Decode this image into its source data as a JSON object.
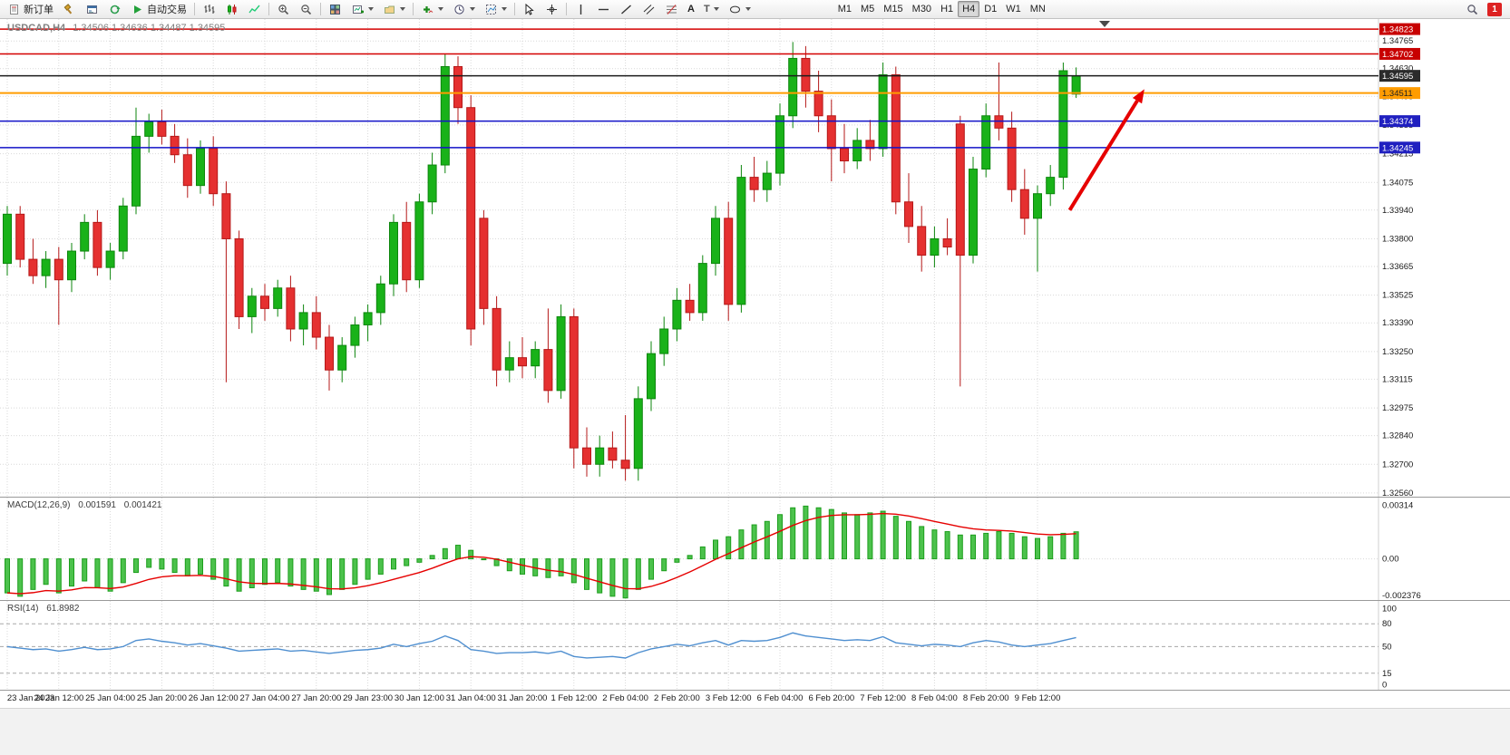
{
  "toolbar": {
    "new_order_label": "新订单",
    "auto_trading_label": "自动交易",
    "text_tool_label": "A",
    "label_tool_label": "T",
    "timeframes": [
      "M1",
      "M5",
      "M15",
      "M30",
      "H1",
      "H4",
      "D1",
      "W1",
      "MN"
    ],
    "active_timeframe": "H4",
    "notification_badge": "1"
  },
  "chart": {
    "title_symbol": "USDCAD,H4",
    "title_ohlc": "1.34506 1.34636 1.34487 1.34595"
  },
  "panels": {
    "macd_label": "MACD(12,26,9)",
    "macd_value": "0.001591",
    "macd_signal_value": "0.001421",
    "rsi_label": "RSI(14)",
    "rsi_value": "61.8982"
  },
  "chart_data": {
    "type": "candlestick",
    "symbol": "USDCAD",
    "timeframe": "H4",
    "price_view": {
      "max": 1.34872,
      "min": 1.32542
    },
    "price_ticks": [
      1.34765,
      1.3463,
      1.34495,
      1.34355,
      1.34215,
      1.34075,
      1.3394,
      1.338,
      1.33665,
      1.33525,
      1.3339,
      1.3325,
      1.33115,
      1.32975,
      1.3284,
      1.327,
      1.3256
    ],
    "style": {
      "up": "#0d860d",
      "up_fill": "#19b219",
      "down": "#b51818",
      "down_fill": "#e53030",
      "macd_bar_fill": "#4cc24c",
      "macd_bar_stroke": "#1d9e1d",
      "macd_signal": "#e60000",
      "rsi_line": "#4f8fd0"
    },
    "hlines": [
      {
        "price": 1.34823,
        "color": "#d40000",
        "width": 1.5,
        "tag_bg": "#c80000",
        "tag_fg": "#ffffff"
      },
      {
        "price": 1.34702,
        "color": "#d40000",
        "width": 1.5,
        "tag_bg": "#c80000",
        "tag_fg": "#ffffff"
      },
      {
        "price": 1.34595,
        "color": "#1c1c1c",
        "width": 1.5,
        "tag_bg": "#2b2b2b",
        "tag_fg": "#ffffff",
        "current": true
      },
      {
        "price": 1.34511,
        "color": "#ff9c00",
        "width": 2,
        "tag_bg": "#ff9c00",
        "tag_fg": "#222222"
      },
      {
        "price": 1.34374,
        "color": "#1212c8",
        "width": 1.5,
        "tag_bg": "#2020c0",
        "tag_fg": "#ffffff"
      },
      {
        "price": 1.34245,
        "color": "#1212c8",
        "width": 1.5,
        "tag_bg": "#2020c0",
        "tag_fg": "#ffffff"
      }
    ],
    "arrow": {
      "from_index": 82.5,
      "from_price": 1.3394,
      "to_index": 88.3,
      "to_price": 1.3453,
      "color": "#e60000"
    },
    "time_label_step": 4,
    "time_labels": [
      "23 Jan 2023",
      "24 Jan 12:00",
      "25 Jan 04:00",
      "25 Jan 20:00",
      "26 Jan 12:00",
      "27 Jan 04:00",
      "27 Jan 20:00",
      "29 Jan 23:00",
      "30 Jan 12:00",
      "31 Jan 04:00",
      "31 Jan 20:00",
      "1 Feb 12:00",
      "2 Feb 04:00",
      "2 Feb 20:00",
      "3 Feb 12:00",
      "6 Feb 04:00",
      "6 Feb 20:00",
      "7 Feb 12:00",
      "8 Feb 04:00",
      "8 Feb 20:00",
      "9 Feb 12:00"
    ],
    "candles": [
      [
        1.3368,
        1.3396,
        1.3362,
        1.3392
      ],
      [
        1.3392,
        1.3396,
        1.3366,
        1.337
      ],
      [
        1.337,
        1.338,
        1.3358,
        1.3362
      ],
      [
        1.3362,
        1.3374,
        1.3356,
        1.337
      ],
      [
        1.337,
        1.3376,
        1.3338,
        1.336
      ],
      [
        1.336,
        1.3378,
        1.3354,
        1.3374
      ],
      [
        1.3374,
        1.3392,
        1.337,
        1.3388
      ],
      [
        1.3388,
        1.3394,
        1.3362,
        1.3366
      ],
      [
        1.3366,
        1.3378,
        1.336,
        1.3374
      ],
      [
        1.3374,
        1.34,
        1.337,
        1.3396
      ],
      [
        1.3396,
        1.3444,
        1.3392,
        1.343
      ],
      [
        1.343,
        1.3441,
        1.3422,
        1.3437
      ],
      [
        1.3437,
        1.3443,
        1.3426,
        1.343
      ],
      [
        1.343,
        1.3436,
        1.3417,
        1.3421
      ],
      [
        1.3421,
        1.3429,
        1.34,
        1.3406
      ],
      [
        1.3406,
        1.3428,
        1.3402,
        1.3424
      ],
      [
        1.3424,
        1.343,
        1.3396,
        1.3402
      ],
      [
        1.3402,
        1.3408,
        1.331,
        1.338
      ],
      [
        1.338,
        1.3384,
        1.3336,
        1.3342
      ],
      [
        1.3342,
        1.3356,
        1.3334,
        1.3352
      ],
      [
        1.3352,
        1.3358,
        1.334,
        1.3346
      ],
      [
        1.3346,
        1.336,
        1.3342,
        1.3356
      ],
      [
        1.3356,
        1.3362,
        1.333,
        1.3336
      ],
      [
        1.3336,
        1.3348,
        1.3328,
        1.3344
      ],
      [
        1.3344,
        1.3352,
        1.3326,
        1.3332
      ],
      [
        1.3332,
        1.3338,
        1.3306,
        1.3316
      ],
      [
        1.3316,
        1.3332,
        1.331,
        1.3328
      ],
      [
        1.3328,
        1.3342,
        1.3322,
        1.3338
      ],
      [
        1.3338,
        1.3348,
        1.333,
        1.3344
      ],
      [
        1.3344,
        1.3362,
        1.3338,
        1.3358
      ],
      [
        1.3358,
        1.3392,
        1.3352,
        1.3388
      ],
      [
        1.3388,
        1.3398,
        1.3354,
        1.336
      ],
      [
        1.336,
        1.3402,
        1.3356,
        1.3398
      ],
      [
        1.3398,
        1.3422,
        1.3392,
        1.3416
      ],
      [
        1.3416,
        1.347,
        1.3412,
        1.3464
      ],
      [
        1.3464,
        1.3469,
        1.3436,
        1.3444
      ],
      [
        1.3444,
        1.345,
        1.3328,
        1.3336
      ],
      [
        1.339,
        1.3394,
        1.3338,
        1.3346
      ],
      [
        1.3346,
        1.3352,
        1.3308,
        1.3316
      ],
      [
        1.3316,
        1.333,
        1.331,
        1.3322
      ],
      [
        1.3322,
        1.3332,
        1.3312,
        1.3318
      ],
      [
        1.3318,
        1.333,
        1.3312,
        1.3326
      ],
      [
        1.3326,
        1.3346,
        1.33,
        1.3306
      ],
      [
        1.3306,
        1.3348,
        1.3302,
        1.3342
      ],
      [
        1.3342,
        1.3346,
        1.3268,
        1.3278
      ],
      [
        1.3278,
        1.3288,
        1.3264,
        1.327
      ],
      [
        1.327,
        1.3284,
        1.3264,
        1.3278
      ],
      [
        1.3278,
        1.3286,
        1.3268,
        1.3272
      ],
      [
        1.3272,
        1.3294,
        1.3262,
        1.3268
      ],
      [
        1.3268,
        1.3308,
        1.3262,
        1.3302
      ],
      [
        1.3302,
        1.333,
        1.3296,
        1.3324
      ],
      [
        1.3324,
        1.3342,
        1.3318,
        1.3336
      ],
      [
        1.3336,
        1.3356,
        1.333,
        1.335
      ],
      [
        1.335,
        1.3358,
        1.334,
        1.3344
      ],
      [
        1.3344,
        1.3372,
        1.334,
        1.3368
      ],
      [
        1.3368,
        1.3396,
        1.3362,
        1.339
      ],
      [
        1.339,
        1.3398,
        1.334,
        1.3348
      ],
      [
        1.3348,
        1.3416,
        1.3344,
        1.341
      ],
      [
        1.341,
        1.342,
        1.3398,
        1.3404
      ],
      [
        1.3404,
        1.3418,
        1.3398,
        1.3412
      ],
      [
        1.3412,
        1.3446,
        1.3406,
        1.344
      ],
      [
        1.344,
        1.3476,
        1.3434,
        1.3468
      ],
      [
        1.3468,
        1.3474,
        1.3444,
        1.3452
      ],
      [
        1.3452,
        1.3462,
        1.3432,
        1.344
      ],
      [
        1.344,
        1.3448,
        1.3408,
        1.3424
      ],
      [
        1.3424,
        1.3436,
        1.3412,
        1.3418
      ],
      [
        1.3418,
        1.3434,
        1.3414,
        1.3428
      ],
      [
        1.3428,
        1.3438,
        1.3418,
        1.3424
      ],
      [
        1.3424,
        1.3466,
        1.342,
        1.346
      ],
      [
        1.346,
        1.3464,
        1.3392,
        1.3398
      ],
      [
        1.3398,
        1.3412,
        1.3378,
        1.3386
      ],
      [
        1.3386,
        1.3396,
        1.3364,
        1.3372
      ],
      [
        1.3372,
        1.3386,
        1.3366,
        1.338
      ],
      [
        1.338,
        1.339,
        1.3372,
        1.3376
      ],
      [
        1.3436,
        1.344,
        1.3308,
        1.3372
      ],
      [
        1.3372,
        1.342,
        1.3368,
        1.3414
      ],
      [
        1.3414,
        1.3446,
        1.341,
        1.344
      ],
      [
        1.344,
        1.3466,
        1.3428,
        1.3434
      ],
      [
        1.3434,
        1.3442,
        1.3398,
        1.3404
      ],
      [
        1.3404,
        1.3414,
        1.3382,
        1.339
      ],
      [
        1.339,
        1.3406,
        1.3364,
        1.3402
      ],
      [
        1.3402,
        1.3416,
        1.3396,
        1.341
      ],
      [
        1.341,
        1.3466,
        1.3404,
        1.3462
      ],
      [
        1.34506,
        1.34636,
        1.34487,
        1.34595
      ]
    ],
    "macd": {
      "label": "MACD(12,26,9)",
      "current_macd": 0.001591,
      "current_signal": 0.001421,
      "view_max": 0.0036,
      "view_min": -0.00242,
      "axis_ticks": [
        "0.00314",
        "0.00",
        "-0.002376"
      ],
      "axis_tick_values": [
        0.00314,
        0,
        -0.002376
      ],
      "signal_smoothing": 0.25,
      "values": [
        -0.002,
        -0.0022,
        -0.0018,
        -0.0015,
        -0.002,
        -0.0016,
        -0.0013,
        -0.0017,
        -0.0019,
        -0.0014,
        -0.0008,
        -0.0005,
        -0.0006,
        -0.0008,
        -0.001,
        -0.0009,
        -0.0012,
        -0.0016,
        -0.0019,
        -0.0017,
        -0.0015,
        -0.0014,
        -0.0016,
        -0.0018,
        -0.0019,
        -0.0021,
        -0.0018,
        -0.0015,
        -0.0012,
        -0.0009,
        -0.0006,
        -0.0004,
        -0.0002,
        0.0002,
        0.0006,
        0.0008,
        0.0005,
        0.0,
        -0.0004,
        -0.0007,
        -0.0009,
        -0.001,
        -0.0011,
        -0.001,
        -0.0014,
        -0.0018,
        -0.002,
        -0.0022,
        -0.0023,
        -0.0018,
        -0.0012,
        -0.0007,
        -0.0002,
        0.0002,
        0.0007,
        0.0011,
        0.0013,
        0.0017,
        0.002,
        0.0022,
        0.0026,
        0.003,
        0.0031,
        0.003,
        0.0029,
        0.0027,
        0.0026,
        0.0027,
        0.0028,
        0.0025,
        0.0022,
        0.0019,
        0.0017,
        0.0016,
        0.0014,
        0.0014,
        0.0015,
        0.0016,
        0.0015,
        0.0013,
        0.0012,
        0.0013,
        0.0015,
        0.00159
      ]
    },
    "rsi": {
      "label": "RSI(14)",
      "current": 61.8982,
      "view_max": 110,
      "view_min": -6.7,
      "levels": [
        80,
        50,
        15
      ],
      "axis_ticks": [
        100,
        80,
        50,
        15,
        0
      ],
      "values": [
        50,
        48,
        46,
        47,
        44,
        46,
        49,
        46,
        47,
        50,
        58,
        60,
        57,
        55,
        52,
        54,
        51,
        48,
        44,
        45,
        46,
        47,
        44,
        45,
        43,
        41,
        43,
        45,
        46,
        48,
        53,
        50,
        54,
        57,
        64,
        58,
        46,
        44,
        41,
        42,
        42,
        43,
        41,
        44,
        37,
        35,
        36,
        37,
        35,
        42,
        47,
        50,
        53,
        51,
        55,
        58,
        52,
        58,
        57,
        58,
        62,
        68,
        64,
        62,
        60,
        58,
        59,
        58,
        63,
        55,
        53,
        51,
        53,
        52,
        50,
        55,
        58,
        56,
        52,
        50,
        52,
        54,
        58,
        61.9
      ]
    }
  }
}
